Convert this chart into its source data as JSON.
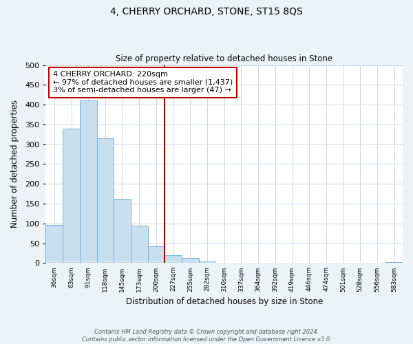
{
  "title": "4, CHERRY ORCHARD, STONE, ST15 8QS",
  "subtitle": "Size of property relative to detached houses in Stone",
  "xlabel": "Distribution of detached houses by size in Stone",
  "ylabel": "Number of detached properties",
  "bin_labels": [
    "36sqm",
    "63sqm",
    "91sqm",
    "118sqm",
    "145sqm",
    "173sqm",
    "200sqm",
    "227sqm",
    "255sqm",
    "282sqm",
    "310sqm",
    "337sqm",
    "364sqm",
    "392sqm",
    "419sqm",
    "446sqm",
    "474sqm",
    "501sqm",
    "528sqm",
    "556sqm",
    "583sqm"
  ],
  "bar_heights": [
    97,
    340,
    410,
    315,
    163,
    95,
    43,
    19,
    13,
    4,
    0,
    0,
    0,
    0,
    0,
    0,
    0,
    0,
    0,
    0,
    3
  ],
  "bar_color": "#c8dff0",
  "bar_edge_color": "#7ab0d4",
  "vline_color": "#aa0000",
  "vline_bin_index": 7,
  "annotation_line1": "4 CHERRY ORCHARD: 220sqm",
  "annotation_line2": "← 97% of detached houses are smaller (1,437)",
  "annotation_line3": "3% of semi-detached houses are larger (47) →",
  "annotation_box_edge": "#bb0000",
  "annotation_box_face": "#ffffff",
  "ylim": [
    0,
    500
  ],
  "yticks": [
    0,
    50,
    100,
    150,
    200,
    250,
    300,
    350,
    400,
    450,
    500
  ],
  "footer_text": "Contains HM Land Registry data © Crown copyright and database right 2024.\nContains public sector information licensed under the Open Government Licence v3.0.",
  "background_color": "#edf2f7",
  "plot_background": "#ffffff",
  "grid_color": "#ccd8e4"
}
